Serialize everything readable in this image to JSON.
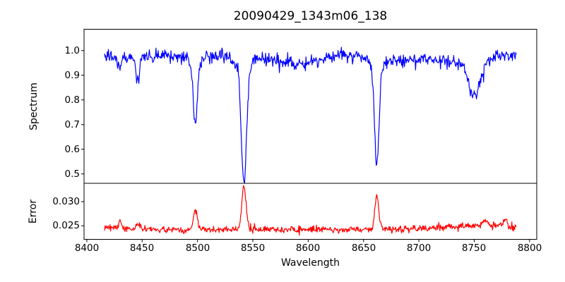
{
  "title": "20090429_1343m06_138",
  "background": "#ffffff",
  "axes": {
    "x": {
      "label": "Wavelength",
      "ticks": [
        "8400",
        "8450",
        "8500",
        "8550",
        "8600",
        "8650",
        "8700",
        "8750",
        "8800"
      ],
      "tick_values": [
        8400,
        8450,
        8500,
        8550,
        8600,
        8650,
        8700,
        8750,
        8800
      ],
      "range": [
        8397.5,
        8806.5
      ]
    },
    "spectrum_y": {
      "label": "Spectrum",
      "ticks": [
        "1.0",
        "0.9",
        "0.8",
        "0.7",
        "0.6",
        "0.5"
      ],
      "tick_values": [
        1.0,
        0.9,
        0.8,
        0.7,
        0.6,
        0.5
      ],
      "range": [
        0.462,
        1.0863
      ]
    },
    "error_y": {
      "label": "Error",
      "ticks": [
        "0.030",
        "0.025"
      ],
      "tick_values": [
        0.03,
        0.025
      ],
      "range": [
        0.0222,
        0.03379
      ]
    }
  },
  "chart_data": [
    {
      "type": "line",
      "name": "spectrum",
      "ylabel": "Spectrum",
      "color": "#0000ff",
      "line_width": 1.2,
      "x_range": [
        8416,
        8788
      ],
      "x_step": 0.5,
      "xlim": [
        8397.5,
        8806.5
      ],
      "ylim": [
        0.462,
        1.0863
      ],
      "continuum_anchors": [
        [
          8416,
          0.978
        ],
        [
          8440,
          0.972
        ],
        [
          8470,
          0.975
        ],
        [
          8500,
          0.978
        ],
        [
          8520,
          0.982
        ],
        [
          8555,
          0.975
        ],
        [
          8578,
          0.955
        ],
        [
          8592,
          0.945
        ],
        [
          8610,
          0.96
        ],
        [
          8632,
          0.985
        ],
        [
          8655,
          0.972
        ],
        [
          8680,
          0.962
        ],
        [
          8700,
          0.963
        ],
        [
          8725,
          0.958
        ],
        [
          8770,
          0.972
        ],
        [
          8788,
          0.985
        ]
      ],
      "absorption_lines": [
        {
          "center": 8430,
          "depth": 0.045,
          "sigma": 1.2
        },
        {
          "center": 8446,
          "depth": 0.11,
          "sigma": 1.4
        },
        {
          "center": 8498,
          "depth": 0.255,
          "sigma": 1.8
        },
        {
          "center": 8498,
          "depth": 0.03,
          "sigma": 5.0
        },
        {
          "center": 8542,
          "depth": 0.47,
          "sigma": 2.3
        },
        {
          "center": 8542,
          "depth": 0.05,
          "sigma": 7.0
        },
        {
          "center": 8662,
          "depth": 0.4,
          "sigma": 2.0
        },
        {
          "center": 8662,
          "depth": 0.04,
          "sigma": 6.0
        },
        {
          "center": 8750,
          "depth": 0.15,
          "sigma": 5.5
        }
      ],
      "noise_sigma": 0.013,
      "seed": 20090429,
      "key_points": {
        "continuum_level": 0.975,
        "line_centers": [
          8446,
          8498,
          8542,
          8662,
          8750
        ],
        "line_minima": [
          0.86,
          0.72,
          0.49,
          0.55,
          0.81
        ]
      }
    },
    {
      "type": "line",
      "name": "error",
      "ylabel": "Error",
      "color": "#ff0000",
      "line_width": 1.2,
      "x_range": [
        8416,
        8788
      ],
      "x_step": 0.5,
      "xlim": [
        8397.5,
        8806.5
      ],
      "ylim": [
        0.0222,
        0.03379
      ],
      "continuum_anchors": [
        [
          8416,
          0.0245
        ],
        [
          8450,
          0.0243
        ],
        [
          8500,
          0.0242
        ],
        [
          8545,
          0.0243
        ],
        [
          8600,
          0.0242
        ],
        [
          8650,
          0.0242
        ],
        [
          8700,
          0.0245
        ],
        [
          8740,
          0.0249
        ],
        [
          8772,
          0.0251
        ],
        [
          8788,
          0.0246
        ]
      ],
      "emission_peaks": [
        {
          "center": 8430,
          "height": 0.0018,
          "sigma": 1.2
        },
        {
          "center": 8446,
          "height": 0.001,
          "sigma": 1.6
        },
        {
          "center": 8498,
          "height": 0.0042,
          "sigma": 1.6
        },
        {
          "center": 8542,
          "height": 0.0088,
          "sigma": 1.9
        },
        {
          "center": 8662,
          "height": 0.007,
          "sigma": 1.8
        },
        {
          "center": 8760,
          "height": 0.0012,
          "sigma": 1.8
        },
        {
          "center": 8778,
          "height": 0.0014,
          "sigma": 1.4
        }
      ],
      "noise_sigma": 0.00035,
      "seed": 1343,
      "key_points": {
        "baseline_level": 0.0243,
        "peak_centers": [
          8498,
          8542,
          8662
        ],
        "peak_values": [
          0.0285,
          0.0333,
          0.0312
        ]
      }
    }
  ]
}
